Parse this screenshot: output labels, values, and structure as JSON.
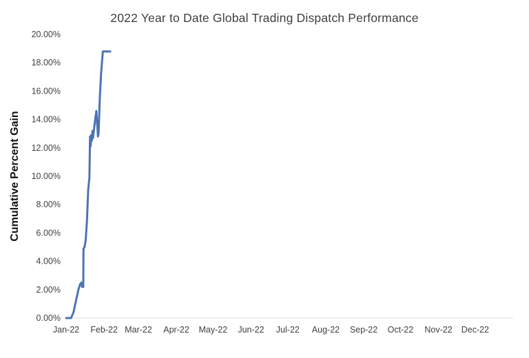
{
  "chart": {
    "title": "2022 Year to Date Global Trading Dispatch Performance",
    "ylabel": "Cumulative Percent Gain"
  },
  "chart_data": {
    "type": "line",
    "title": "2022 Year to Date Global Trading Dispatch Performance",
    "xlabel": "",
    "ylabel": "Cumulative Percent Gain",
    "legend": "none",
    "grid": "off",
    "line_color": "#4d74b3",
    "axis_line_color": "#d9d9d9",
    "x_range": [
      0,
      365
    ],
    "ylim": [
      0,
      20
    ],
    "y_ticks": [
      {
        "value": 0,
        "label": "0.00%"
      },
      {
        "value": 2,
        "label": "2.00%"
      },
      {
        "value": 4,
        "label": "4.00%"
      },
      {
        "value": 6,
        "label": "6.00%"
      },
      {
        "value": 8,
        "label": "8.00%"
      },
      {
        "value": 10,
        "label": "10.00%"
      },
      {
        "value": 12,
        "label": "12.00%"
      },
      {
        "value": 14,
        "label": "14.00%"
      },
      {
        "value": 16,
        "label": "16.00%"
      },
      {
        "value": 18,
        "label": "18.00%"
      },
      {
        "value": 20,
        "label": "20.00%"
      }
    ],
    "x_ticks": [
      {
        "day": 0,
        "label": "Jan-22"
      },
      {
        "day": 31,
        "label": "Feb-22"
      },
      {
        "day": 59,
        "label": "Mar-22"
      },
      {
        "day": 90,
        "label": "Apr-22"
      },
      {
        "day": 120,
        "label": "May-22"
      },
      {
        "day": 151,
        "label": "Jun-22"
      },
      {
        "day": 181,
        "label": "Jul-22"
      },
      {
        "day": 212,
        "label": "Aug-22"
      },
      {
        "day": 243,
        "label": "Sep-22"
      },
      {
        "day": 273,
        "label": "Oct-22"
      },
      {
        "day": 304,
        "label": "Nov-22"
      },
      {
        "day": 334,
        "label": "Dec-22"
      }
    ],
    "series": [
      {
        "name": "Cumulative Percent Gain",
        "points": [
          [
            0,
            0.0
          ],
          [
            4,
            0.0
          ],
          [
            6,
            0.4
          ],
          [
            8,
            1.2
          ],
          [
            10,
            2.0
          ],
          [
            11.5,
            2.4
          ],
          [
            12.5,
            2.5
          ],
          [
            13,
            2.2
          ],
          [
            14,
            2.2
          ],
          [
            14.2,
            4.9
          ],
          [
            15,
            5.0
          ],
          [
            16,
            5.5
          ],
          [
            17,
            6.8
          ],
          [
            18,
            9.0
          ],
          [
            19,
            9.9
          ],
          [
            19.5,
            12.8
          ],
          [
            20,
            12.1
          ],
          [
            20.5,
            12.9
          ],
          [
            21,
            12.5
          ],
          [
            21.5,
            13.2
          ],
          [
            22,
            12.7
          ],
          [
            23,
            13.5
          ],
          [
            24,
            14.2
          ],
          [
            24.7,
            14.6
          ],
          [
            25.5,
            13.5
          ],
          [
            26,
            12.8
          ],
          [
            26.5,
            13.0
          ],
          [
            27.5,
            15.5
          ],
          [
            28.5,
            17.2
          ],
          [
            29.5,
            18.3
          ],
          [
            30,
            18.8
          ],
          [
            33,
            18.8
          ],
          [
            36,
            18.8
          ]
        ]
      }
    ]
  }
}
